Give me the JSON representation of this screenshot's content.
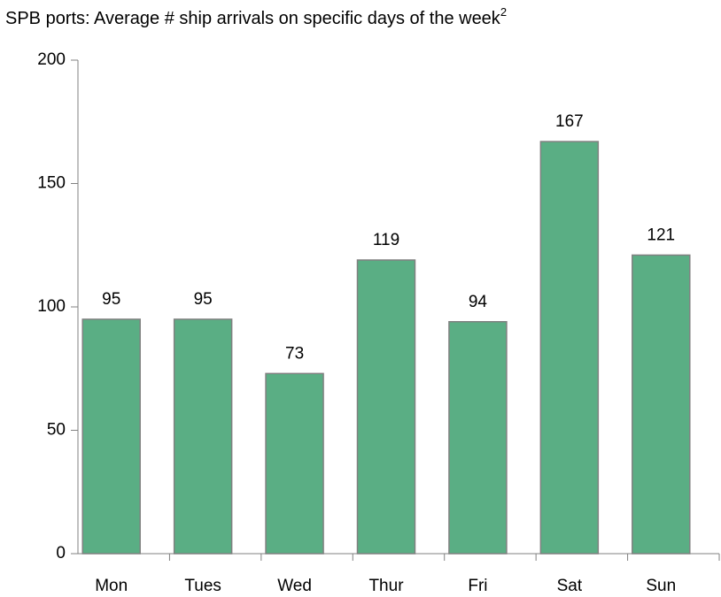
{
  "chart_data": {
    "type": "bar",
    "title": "SPB ports: Average # ship arrivals on specific days of the week",
    "title_superscript": "2",
    "categories": [
      "Mon",
      "Tues",
      "Wed",
      "Thur",
      "Fri",
      "Sat",
      "Sun"
    ],
    "values": [
      95,
      95,
      73,
      119,
      94,
      167,
      121
    ],
    "color": "#5aae84",
    "ylim": [
      0,
      200
    ],
    "yticks": [
      0,
      50,
      100,
      150,
      200
    ],
    "grid": false
  }
}
